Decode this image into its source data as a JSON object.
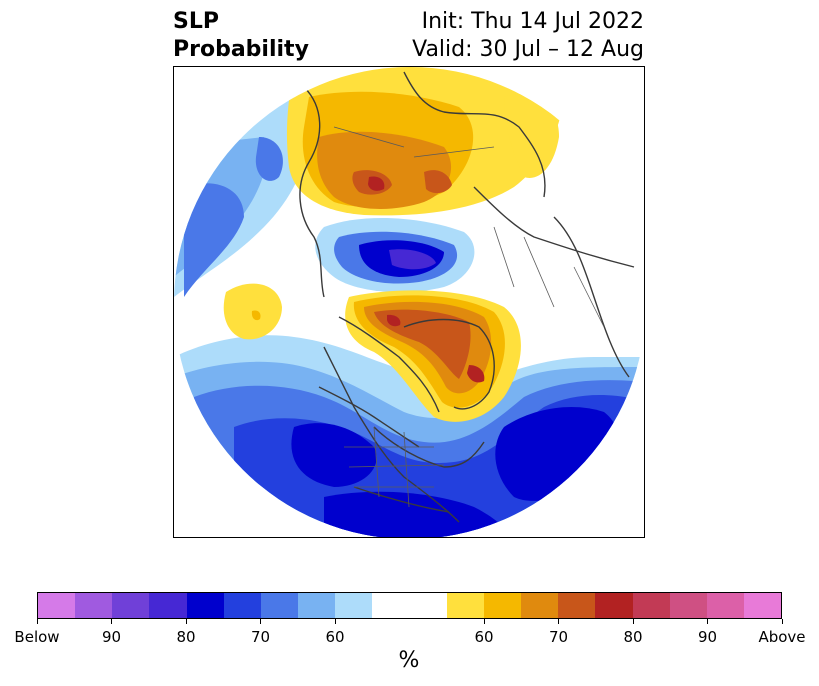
{
  "title": {
    "left": "SLP\nProbability",
    "init": "Init: Thu 14 Jul 2022",
    "valid": "Valid: 30 Jul – 12 Aug"
  },
  "map": {
    "projection": "north polar stereographic",
    "coastline_color": "#3a3a3a",
    "anomaly_features": [
      {
        "name": "positive anomaly over Siberia / Arctic Russia",
        "category": "Above",
        "peak": "80"
      },
      {
        "name": "negative anomaly over Arctic Ocean",
        "category": "Below",
        "peak": "80"
      },
      {
        "name": "positive anomaly over Canadian Arctic and Greenland",
        "category": "Above",
        "peak": "80"
      },
      {
        "name": "negative anomaly over North America",
        "category": "Below",
        "peak": "70"
      },
      {
        "name": "negative anomaly over North Atlantic",
        "category": "Below",
        "peak": "80"
      },
      {
        "name": "negative anomaly over North Pacific",
        "category": "Below",
        "peak": "70"
      },
      {
        "name": "positive anomaly over Mediterranean / North Africa",
        "category": "Above",
        "peak": "60"
      }
    ]
  },
  "colorbar": {
    "colors": [
      "#d57ae8",
      "#a05ae0",
      "#7040d8",
      "#4628d4",
      "#0000cd",
      "#2340de",
      "#4a78e8",
      "#78b2f2",
      "#addcfa",
      "#ffffff",
      "#ffffff",
      "#ffe03d",
      "#f5b800",
      "#e08a0e",
      "#c8561a",
      "#b22222",
      "#c23a55",
      "#cf5083",
      "#dc60a8",
      "#e87ad8"
    ],
    "tick_labels": [
      "Below",
      "90",
      "80",
      "70",
      "60",
      "60",
      "70",
      "80",
      "90",
      "Above"
    ],
    "unit": "%"
  }
}
